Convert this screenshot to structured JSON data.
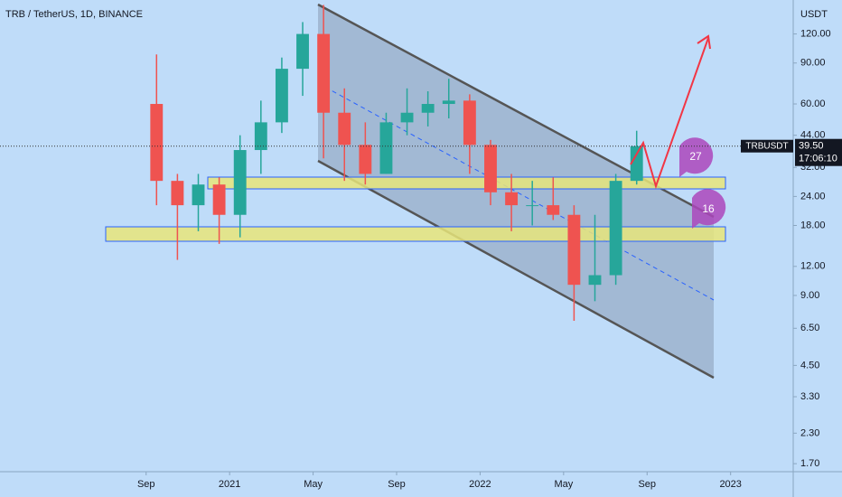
{
  "chart_data": {
    "type": "candlestick",
    "title": "TRB / TetherUS, 1D, BINANCE",
    "y_axis_label": "USDT",
    "symbol": "TRBUSDT",
    "countdown": "17:06:10",
    "last_price": {
      "value": 39.5,
      "label": "39.50"
    },
    "annotations": [
      "27",
      "16"
    ],
    "x": [
      "2020-09",
      "2020-10",
      "2020-11",
      "2020-12",
      "2021-01",
      "2021-02",
      "2021-03",
      "2021-04",
      "2021-05",
      "2021-06",
      "2021-07",
      "2021-08",
      "2021-09",
      "2021-10",
      "2021-11",
      "2021-12",
      "2022-01",
      "2022-02",
      "2022-03",
      "2022-04",
      "2022-05",
      "2022-06",
      "2022-07",
      "2022-08"
    ],
    "open": [
      60,
      28,
      22,
      27,
      20,
      38,
      50,
      85,
      120,
      55,
      40,
      30,
      50,
      55,
      60,
      62,
      40,
      25,
      22,
      22,
      20,
      10,
      11,
      28
    ],
    "high": [
      98,
      30,
      30,
      29,
      44,
      62,
      95,
      135,
      160,
      70,
      50,
      55,
      70,
      68,
      77,
      66,
      42,
      30,
      28,
      29,
      22,
      20,
      30,
      46
    ],
    "low": [
      22,
      12.8,
      17,
      15,
      16,
      30,
      45,
      65,
      35,
      28,
      27,
      30,
      44,
      48,
      52,
      30,
      22,
      17,
      18,
      19,
      7,
      8.5,
      10,
      27
    ],
    "close": [
      28,
      22,
      27,
      20,
      38,
      50,
      85,
      120,
      55,
      40,
      30,
      50,
      55,
      60,
      62,
      40,
      25,
      22,
      22,
      20,
      10,
      11,
      28,
      39.5
    ],
    "up_color": "#26a69a",
    "down_color": "#ef5350",
    "log_scale": true,
    "xlim": [
      "2020-02",
      "2023-04"
    ],
    "xticks": [
      {
        "value": "2020-09",
        "label": "Sep"
      },
      {
        "value": "2021-01",
        "label": "2021"
      },
      {
        "value": "2021-05",
        "label": "May"
      },
      {
        "value": "2021-09",
        "label": "Sep"
      },
      {
        "value": "2022-01",
        "label": "2022"
      },
      {
        "value": "2022-05",
        "label": "May"
      },
      {
        "value": "2022-09",
        "label": "Sep"
      },
      {
        "value": "2023-01",
        "label": "2023"
      }
    ],
    "ylim": [
      1.57,
      168
    ],
    "yticks": [
      {
        "value": 120,
        "label": "120.00"
      },
      {
        "value": 90,
        "label": "90.00"
      },
      {
        "value": 60,
        "label": "60.00"
      },
      {
        "value": 44,
        "label": "44.00"
      },
      {
        "value": 32,
        "label": "32.00"
      },
      {
        "value": 24,
        "label": "24.00"
      },
      {
        "value": 18,
        "label": "18.00"
      },
      {
        "value": 12,
        "label": "12.00"
      },
      {
        "value": 9,
        "label": "9.00"
      },
      {
        "value": 6.5,
        "label": "6.50"
      },
      {
        "value": 4.5,
        "label": "4.50"
      },
      {
        "value": 3.3,
        "label": "3.30"
      },
      {
        "value": 2.3,
        "label": "2.30"
      },
      {
        "value": 1.7,
        "label": "1.70"
      }
    ]
  }
}
